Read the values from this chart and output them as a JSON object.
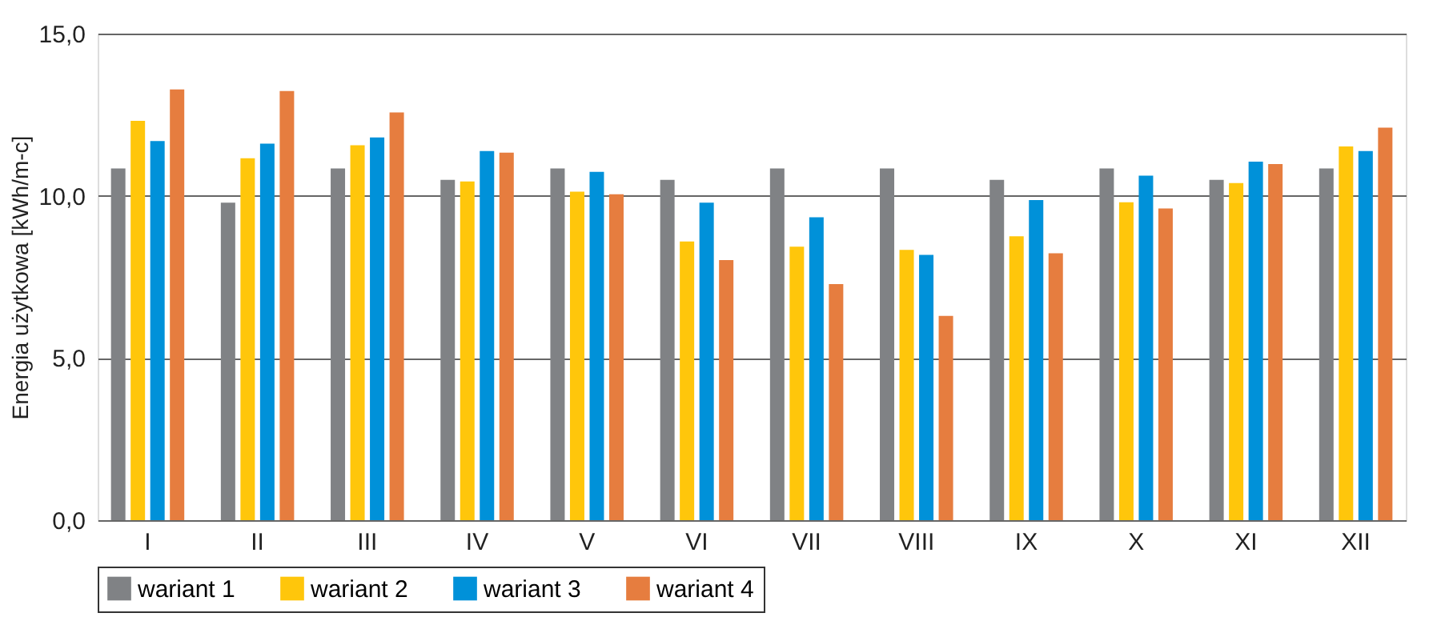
{
  "chart_data": {
    "type": "bar",
    "ylabel": "Energia użytkowa [kWh/m-c]",
    "categories": [
      "I",
      "II",
      "III",
      "IV",
      "V",
      "VI",
      "VII",
      "VIII",
      "IX",
      "X",
      "XI",
      "XII"
    ],
    "series": [
      {
        "name": "wariant 1",
        "color": "#808285",
        "values": [
          10.84,
          9.79,
          10.84,
          10.49,
          10.84,
          10.49,
          10.84,
          10.84,
          10.49,
          10.84,
          10.49,
          10.84
        ]
      },
      {
        "name": "wariant 2",
        "color": "#ffc60b",
        "values": [
          12.31,
          11.16,
          11.56,
          10.44,
          10.13,
          8.59,
          8.43,
          8.33,
          8.75,
          9.8,
          10.39,
          11.52
        ]
      },
      {
        "name": "wariant 3",
        "color": "#0091d9",
        "values": [
          11.69,
          11.61,
          11.8,
          11.38,
          10.74,
          9.79,
          9.34,
          8.18,
          9.87,
          10.62,
          11.05,
          11.38
        ]
      },
      {
        "name": "wariant 4",
        "color": "#e67d3f",
        "values": [
          13.28,
          13.23,
          12.57,
          11.33,
          10.05,
          8.02,
          7.28,
          6.3,
          8.23,
          9.61,
          10.98,
          12.1
        ]
      }
    ],
    "ylim": [
      0,
      15
    ],
    "yticks": [
      {
        "value": 0,
        "label": "0,0"
      },
      {
        "value": 5,
        "label": "5,0"
      },
      {
        "value": 10,
        "label": "10,0"
      },
      {
        "value": 15,
        "label": "15,0"
      }
    ],
    "grid": "y",
    "legend": "bottom"
  }
}
